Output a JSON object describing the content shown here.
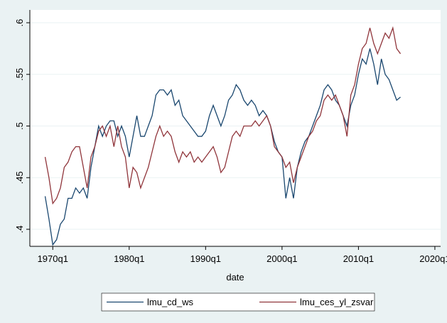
{
  "chart_data": {
    "type": "line",
    "x_label": "date",
    "x": [
      36,
      38,
      40,
      42,
      44,
      46,
      48,
      50,
      52,
      54,
      56,
      58,
      60,
      62,
      64,
      66,
      68,
      70,
      72,
      74,
      76,
      78,
      80,
      82,
      84,
      86,
      88,
      90,
      92,
      94,
      96,
      98,
      100,
      102,
      104,
      106,
      108,
      110,
      112,
      114,
      116,
      118,
      120,
      122,
      124,
      126,
      128,
      130,
      132,
      134,
      136,
      138,
      140,
      142,
      144,
      146,
      148,
      150,
      152,
      154,
      156,
      158,
      160,
      162,
      164,
      166,
      168,
      170,
      172,
      174,
      176,
      178,
      180,
      182,
      184,
      186,
      188,
      190,
      192,
      194,
      196,
      198,
      200,
      202,
      204,
      206,
      208,
      210,
      212,
      214,
      216,
      218,
      220,
      222
    ],
    "series": [
      {
        "name": "lmu_cd_ws",
        "color": "#1a476f",
        "values": [
          0.432,
          0.41,
          0.385,
          0.39,
          0.405,
          0.41,
          0.43,
          0.43,
          0.44,
          0.435,
          0.44,
          0.43,
          0.46,
          0.48,
          0.5,
          0.49,
          0.5,
          0.505,
          0.505,
          0.49,
          0.5,
          0.49,
          0.47,
          0.49,
          0.51,
          0.49,
          0.49,
          0.5,
          0.51,
          0.53,
          0.535,
          0.535,
          0.53,
          0.535,
          0.52,
          0.525,
          0.51,
          0.505,
          0.5,
          0.495,
          0.49,
          0.49,
          0.495,
          0.51,
          0.52,
          0.51,
          0.5,
          0.51,
          0.525,
          0.53,
          0.54,
          0.535,
          0.525,
          0.52,
          0.525,
          0.52,
          0.51,
          0.515,
          0.51,
          0.5,
          0.485,
          0.475,
          0.47,
          0.43,
          0.45,
          0.43,
          0.46,
          0.475,
          0.485,
          0.49,
          0.5,
          0.51,
          0.52,
          0.535,
          0.54,
          0.535,
          0.525,
          0.52,
          0.51,
          0.5,
          0.52,
          0.53,
          0.55,
          0.565,
          0.56,
          0.575,
          0.56,
          0.54,
          0.565,
          0.55,
          0.545,
          0.535,
          0.525,
          0.528
        ]
      },
      {
        "name": "lmu_ces_yl_zsvar",
        "color": "#90353b",
        "values": [
          0.47,
          0.45,
          0.425,
          0.43,
          0.44,
          0.46,
          0.465,
          0.475,
          0.48,
          0.48,
          0.46,
          0.44,
          0.47,
          0.48,
          0.495,
          0.5,
          0.49,
          0.5,
          0.48,
          0.5,
          0.48,
          0.47,
          0.44,
          0.46,
          0.455,
          0.44,
          0.45,
          0.46,
          0.475,
          0.49,
          0.5,
          0.49,
          0.495,
          0.49,
          0.475,
          0.465,
          0.475,
          0.47,
          0.475,
          0.465,
          0.47,
          0.465,
          0.47,
          0.475,
          0.48,
          0.47,
          0.455,
          0.46,
          0.475,
          0.49,
          0.495,
          0.49,
          0.5,
          0.5,
          0.5,
          0.505,
          0.5,
          0.505,
          0.51,
          0.5,
          0.48,
          0.475,
          0.47,
          0.46,
          0.465,
          0.445,
          0.46,
          0.47,
          0.48,
          0.49,
          0.495,
          0.505,
          0.51,
          0.525,
          0.53,
          0.525,
          0.53,
          0.52,
          0.51,
          0.49,
          0.53,
          0.54,
          0.56,
          0.575,
          0.58,
          0.595,
          0.58,
          0.57,
          0.58,
          0.59,
          0.585,
          0.595,
          0.575,
          0.57
        ]
      }
    ],
    "xlim": [
      28,
      243
    ],
    "xticks": [
      {
        "value": 40,
        "label": "1970q1"
      },
      {
        "value": 80,
        "label": "1980q1"
      },
      {
        "value": 120,
        "label": "1990q1"
      },
      {
        "value": 160,
        "label": "2000q1"
      },
      {
        "value": 200,
        "label": "2010q1"
      },
      {
        "value": 240,
        "label": "2020q1"
      }
    ],
    "ylim": [
      0.3835,
      0.6124
    ],
    "yticks": [
      {
        "value": 0.4,
        "label": ".4"
      },
      {
        "value": 0.45,
        "label": ".45"
      },
      {
        "value": 0.5,
        "label": ".5"
      },
      {
        "value": 0.55,
        "label": ".55"
      },
      {
        "value": 0.6,
        "label": ".6"
      }
    ],
    "grid": true,
    "legend": "bottom"
  }
}
